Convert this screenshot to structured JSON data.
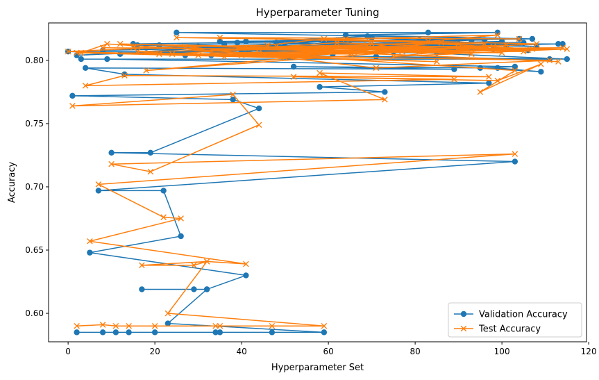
{
  "chart_data": {
    "type": "line",
    "title": "Hyperparameter Tuning",
    "xlabel": "Hyperparameter Set",
    "ylabel": "Accuracy",
    "xlim": [
      -4.5,
      119.5
    ],
    "ylim": [
      0.5775,
      0.8296
    ],
    "xticks": [
      0,
      20,
      40,
      60,
      80,
      100,
      120
    ],
    "xtick_labels": [
      "0",
      "20",
      "40",
      "60",
      "80",
      "100",
      "120"
    ],
    "yticks": [
      0.6,
      0.65,
      0.7,
      0.75,
      0.8
    ],
    "ytick_labels": [
      "0.60",
      "0.65",
      "0.70",
      "0.75",
      "0.80"
    ],
    "grid": false,
    "legend_position": "lower right",
    "series": [
      {
        "name": "Validation Accuracy",
        "color": "#1f77b4",
        "marker": "circle",
        "x": [
          2,
          8,
          11,
          14,
          20,
          34,
          35,
          47,
          59,
          23,
          32,
          29,
          17,
          32,
          41,
          5,
          26,
          22,
          7,
          103,
          10,
          19,
          44,
          38,
          1,
          73,
          58,
          97,
          13,
          4,
          89,
          52,
          99,
          109,
          95,
          103,
          9,
          3,
          111,
          71,
          27,
          0,
          85,
          40,
          61,
          101,
          75,
          115,
          33,
          55,
          18,
          90,
          66,
          113,
          44,
          8,
          100,
          77,
          24,
          62,
          106,
          30,
          16,
          98,
          48,
          79,
          57,
          21,
          36,
          114,
          68,
          93,
          12,
          105,
          41,
          86,
          50,
          2,
          65,
          108,
          59,
          46,
          15,
          81,
          70,
          96,
          35,
          104,
          25,
          83,
          99,
          64,
          107,
          39,
          69
        ],
        "y": [
          0.585,
          0.585,
          0.585,
          0.585,
          0.585,
          0.585,
          0.585,
          0.585,
          0.585,
          0.592,
          0.619,
          0.619,
          0.619,
          0.619,
          0.63,
          0.648,
          0.661,
          0.697,
          0.697,
          0.72,
          0.727,
          0.727,
          0.762,
          0.769,
          0.772,
          0.775,
          0.779,
          0.782,
          0.789,
          0.794,
          0.793,
          0.795,
          0.794,
          0.791,
          0.794,
          0.795,
          0.801,
          0.801,
          0.801,
          0.803,
          0.804,
          0.807,
          0.806,
          0.808,
          0.805,
          0.81,
          0.807,
          0.801,
          0.804,
          0.812,
          0.81,
          0.813,
          0.809,
          0.813,
          0.81,
          0.808,
          0.815,
          0.812,
          0.806,
          0.816,
          0.808,
          0.811,
          0.812,
          0.809,
          0.814,
          0.81,
          0.807,
          0.812,
          0.813,
          0.813,
          0.811,
          0.816,
          0.805,
          0.814,
          0.815,
          0.809,
          0.811,
          0.804,
          0.816,
          0.811,
          0.814,
          0.808,
          0.813,
          0.816,
          0.818,
          0.816,
          0.815,
          0.817,
          0.822,
          0.822,
          0.822,
          0.82,
          0.817,
          0.814,
          0.819
        ]
      },
      {
        "name": "Test Accuracy",
        "color": "#ff7f0e",
        "marker": "x",
        "x": [
          2,
          8,
          11,
          14,
          20,
          34,
          35,
          47,
          59,
          23,
          32,
          29,
          17,
          32,
          41,
          5,
          26,
          22,
          7,
          103,
          10,
          19,
          44,
          38,
          1,
          73,
          58,
          97,
          13,
          4,
          89,
          52,
          99,
          109,
          95,
          103,
          9,
          3,
          111,
          71,
          27,
          0,
          85,
          40,
          61,
          101,
          75,
          115,
          33,
          55,
          18,
          90,
          66,
          113,
          44,
          8,
          100,
          77,
          24,
          62,
          106,
          30,
          16,
          98,
          48,
          79,
          57,
          21,
          36,
          114,
          68,
          93,
          12,
          105,
          41,
          86,
          50,
          2,
          65,
          108,
          59,
          46,
          15,
          81,
          70,
          96,
          35,
          104,
          25,
          83,
          99,
          64,
          107,
          39,
          69
        ],
        "y": [
          0.59,
          0.591,
          0.59,
          0.59,
          0.59,
          0.59,
          0.59,
          0.59,
          0.59,
          0.6,
          0.641,
          0.638,
          0.638,
          0.641,
          0.639,
          0.657,
          0.675,
          0.676,
          0.702,
          0.726,
          0.718,
          0.712,
          0.749,
          0.773,
          0.764,
          0.769,
          0.79,
          0.787,
          0.788,
          0.78,
          0.785,
          0.787,
          0.784,
          0.797,
          0.775,
          0.792,
          0.813,
          0.806,
          0.8,
          0.794,
          0.811,
          0.807,
          0.799,
          0.804,
          0.808,
          0.812,
          0.803,
          0.809,
          0.806,
          0.803,
          0.792,
          0.81,
          0.806,
          0.799,
          0.809,
          0.81,
          0.806,
          0.807,
          0.805,
          0.814,
          0.808,
          0.804,
          0.807,
          0.811,
          0.811,
          0.81,
          0.804,
          0.805,
          0.803,
          0.81,
          0.809,
          0.805,
          0.813,
          0.807,
          0.81,
          0.814,
          0.802,
          0.806,
          0.805,
          0.813,
          0.817,
          0.812,
          0.81,
          0.807,
          0.813,
          0.813,
          0.818,
          0.817,
          0.818,
          0.815,
          0.82,
          0.817,
          0.809,
          0.81,
          0.812
        ]
      }
    ]
  }
}
